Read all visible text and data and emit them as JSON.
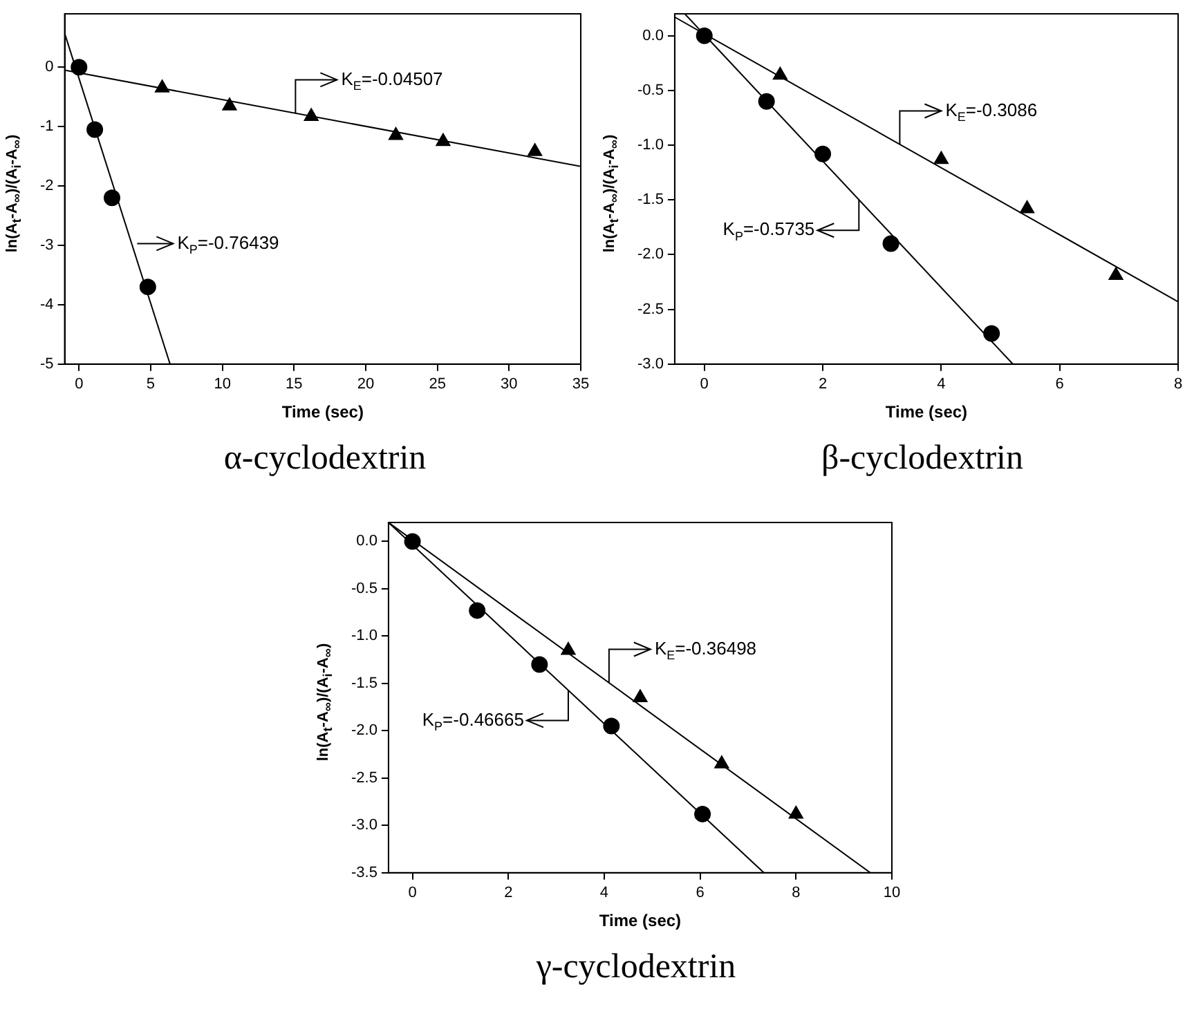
{
  "chart_data": [
    {
      "type": "scatter",
      "title": "α-cyclodextrin",
      "xlabel": "Time (sec)",
      "ylabel": "ln(A$_{t}$-A$_{∞}$)/(A$_{i}$-A$_{∞}$)",
      "xlim": [
        -1,
        35
      ],
      "xticks": [
        0,
        5,
        10,
        15,
        20,
        25,
        30,
        35
      ],
      "ylim": [
        -5,
        0.9
      ],
      "yticks": [
        0,
        -1,
        -2,
        -3,
        -4,
        -5
      ],
      "series": [
        {
          "type": "scatter",
          "marker": "circle",
          "color": "#000000",
          "x": [
            0,
            1.1,
            2.3,
            4.8
          ],
          "values": [
            0,
            -1.05,
            -2.2,
            -3.7
          ]
        },
        {
          "type": "scatter",
          "marker": "triangle",
          "color": "#000000",
          "x": [
            5.8,
            10.5,
            16.2,
            22.1,
            25.4,
            31.8
          ],
          "values": [
            -0.35,
            -0.65,
            -0.83,
            -1.15,
            -1.25,
            -1.42
          ]
        },
        {
          "type": "line",
          "marker": "none",
          "color": "#000000",
          "x": [
            -1,
            35
          ],
          "values": [
            -0.05,
            -1.67
          ]
        },
        {
          "type": "line",
          "marker": "none",
          "color": "#000000",
          "x": [
            -1,
            6.35
          ],
          "values": [
            0.57,
            -5
          ]
        }
      ],
      "annotations": [
        {
          "text": "K$_{E}$=-0.04507",
          "x": 15.1,
          "y": -0.77
        },
        {
          "text": "K$_{P}$=-0.76439",
          "x": 3.67,
          "y": -2.97
        }
      ]
    },
    {
      "type": "scatter",
      "title": "β-cyclodextrin",
      "xlabel": "Time (sec)",
      "ylabel": "ln(A$_{t}$-A$_{∞}$)/(A$_{i}$-A$_{∞}$)",
      "xlim": [
        -0.5,
        8
      ],
      "xticks": [
        0,
        2,
        4,
        6,
        8
      ],
      "ylim": [
        -3,
        0.2
      ],
      "yticks": [
        {
          "value": 0,
          "label": "0.0"
        },
        -0.5,
        {
          "value": -1,
          "label": "-1.0"
        },
        -1.5,
        {
          "value": -2,
          "label": "-2.0"
        },
        -2.5,
        {
          "value": -3,
          "label": "-3.0"
        }
      ],
      "series": [
        {
          "type": "scatter",
          "marker": "triangle",
          "color": "#000000",
          "x": [
            1.28,
            4.0,
            5.45,
            6.95
          ],
          "values": [
            -0.36,
            -1.13,
            -1.58,
            -2.19
          ]
        },
        {
          "type": "scatter",
          "marker": "circle",
          "color": "#000000",
          "x": [
            0,
            1.05,
            2.0,
            3.15,
            4.85
          ],
          "values": [
            0,
            -0.6,
            -1.08,
            -1.9,
            -2.72
          ]
        },
        {
          "type": "line",
          "marker": "none",
          "color": "#000000",
          "x": [
            -0.5,
            8
          ],
          "values": [
            0.17,
            -2.43
          ]
        },
        {
          "type": "line",
          "marker": "none",
          "color": "#000000",
          "x": [
            -0.33,
            5.21
          ],
          "values": [
            0.2,
            -3
          ]
        }
      ],
      "annotations": [
        {
          "text": "K$_{E}$=-0.3086",
          "x": 3.3,
          "y": -0.99
        },
        {
          "text": "K$_{P}$=-0.5735",
          "x": 2.61,
          "y": -1.5
        }
      ]
    },
    {
      "type": "scatter",
      "title": "γ-cyclodextrin",
      "xlabel": "Time (sec)",
      "ylabel": "ln(A$_{t}$-A$_{∞}$)/(A$_{i}$-A$_{∞}$)",
      "xlim": [
        -0.5,
        10
      ],
      "xticks": [
        0,
        2,
        4,
        6,
        8,
        10
      ],
      "ylim": [
        -3.5,
        0.2
      ],
      "yticks": [
        {
          "value": 0,
          "label": "0.0"
        },
        -0.5,
        {
          "value": -1,
          "label": "-1.0"
        },
        -1.5,
        {
          "value": -2,
          "label": "-2.0"
        },
        -2.5,
        {
          "value": -3,
          "label": "-3.0"
        },
        -3.5
      ],
      "series": [
        {
          "type": "scatter",
          "marker": "circle",
          "color": "#000000",
          "x": [
            0,
            1.35,
            2.65,
            4.15,
            6.05
          ],
          "values": [
            0,
            -0.73,
            -1.3,
            -1.95,
            -2.88
          ]
        },
        {
          "type": "scatter",
          "marker": "triangle",
          "color": "#000000",
          "x": [
            3.25,
            4.75,
            6.45,
            8.0
          ],
          "values": [
            -1.15,
            -1.65,
            -2.35,
            -2.88
          ]
        },
        {
          "type": "line",
          "marker": "none",
          "color": "#000000",
          "x": [
            -0.5,
            9.55
          ],
          "values": [
            0.2,
            -3.5
          ]
        },
        {
          "type": "line",
          "marker": "none",
          "color": "#000000",
          "x": [
            -0.5,
            7.33
          ],
          "values": [
            0.2,
            -3.5
          ]
        }
      ],
      "annotations": [
        {
          "text": "K$_{E}$=-0.36498",
          "x": 4.1,
          "y": -1.49
        },
        {
          "text": "K$_{P}$=-0.46665",
          "x": 3.25,
          "y": -1.57
        }
      ]
    }
  ]
}
